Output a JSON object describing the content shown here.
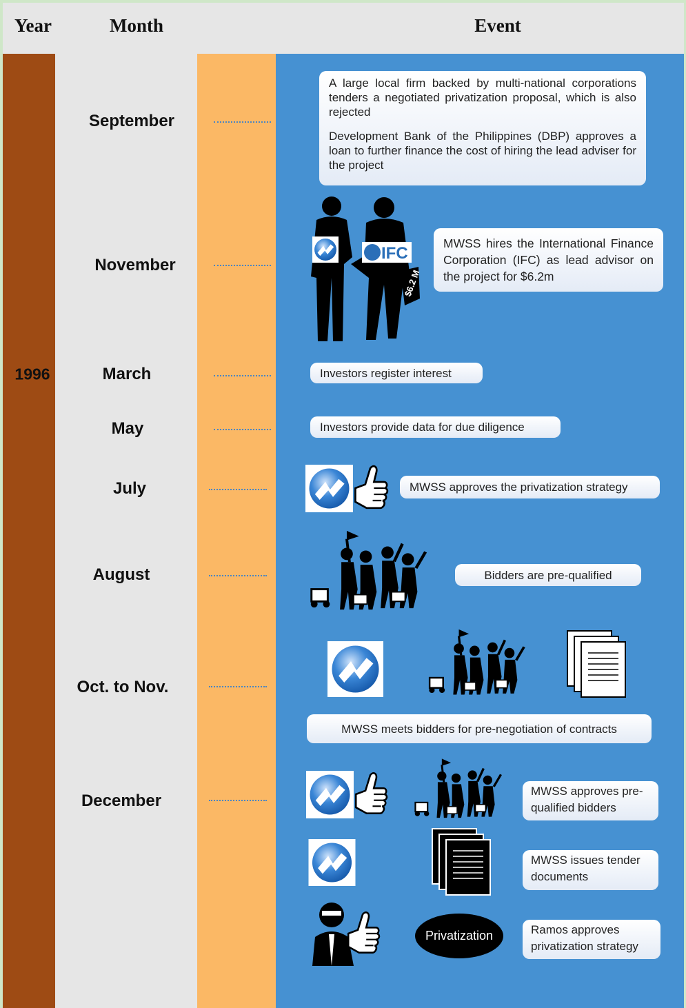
{
  "header": {
    "year": "Year",
    "month": "Month",
    "event": "Event"
  },
  "year": "1996",
  "rows": [
    {
      "month": "September",
      "events": [
        "A large local firm backed by multi-national corporations tenders a negotiated privatization proposal, which is also rejected",
        "Development Bank of the Philippines (DBP) approves a loan to further finance the cost of  hiring the lead adviser for the project"
      ]
    },
    {
      "month": "November",
      "events": [
        "MWSS hires the International Finance Corporation (IFC) as lead advisor on the project for $6.2m"
      ],
      "icon_labels": [
        "IFC",
        "$6.2 M"
      ]
    },
    {
      "month": "March",
      "events": [
        "Investors register interest"
      ]
    },
    {
      "month": "May",
      "events": [
        "Investors provide data for due diligence"
      ]
    },
    {
      "month": "July",
      "events": [
        "MWSS approves the privatization strategy"
      ]
    },
    {
      "month": "August",
      "events": [
        "Bidders are pre-qualified"
      ]
    },
    {
      "month": "Oct. to Nov.",
      "events": [
        "MWSS meets bidders for pre-negotiation of contracts"
      ]
    },
    {
      "month": "December",
      "events": [
        "MWSS approves pre-qualified bidders",
        "MWSS issues tender documents",
        "Ramos approves privatization strategy"
      ],
      "icon_labels": [
        "Privatization"
      ]
    }
  ]
}
